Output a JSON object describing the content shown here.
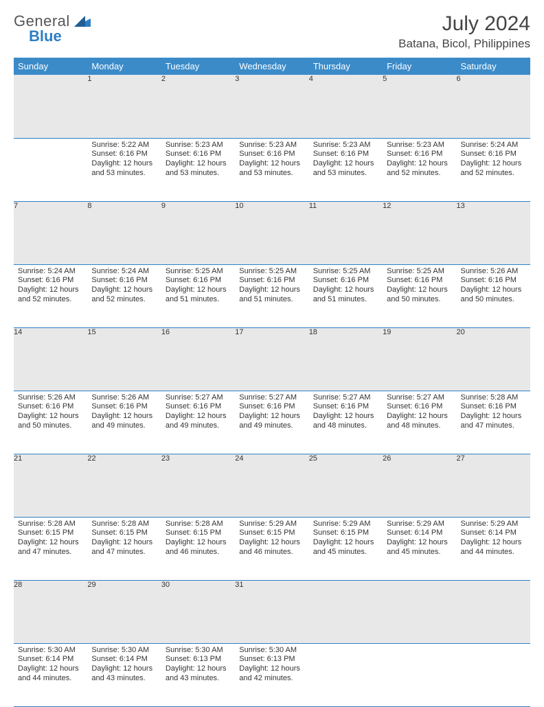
{
  "brand": {
    "name_part1": "General",
    "name_part2": "Blue"
  },
  "title": "July 2024",
  "location": "Batana, Bicol, Philippines",
  "colors": {
    "accent": "#3b8bc9",
    "rule": "#2d7ec4",
    "daybg": "#e8e8e8",
    "text": "#333333"
  },
  "weekdays": [
    "Sunday",
    "Monday",
    "Tuesday",
    "Wednesday",
    "Thursday",
    "Friday",
    "Saturday"
  ],
  "weeks": [
    {
      "nums": [
        "",
        "1",
        "2",
        "3",
        "4",
        "5",
        "6"
      ],
      "cells": [
        null,
        {
          "sunrise": "Sunrise: 5:22 AM",
          "sunset": "Sunset: 6:16 PM",
          "daylight": "Daylight: 12 hours and 53 minutes."
        },
        {
          "sunrise": "Sunrise: 5:23 AM",
          "sunset": "Sunset: 6:16 PM",
          "daylight": "Daylight: 12 hours and 53 minutes."
        },
        {
          "sunrise": "Sunrise: 5:23 AM",
          "sunset": "Sunset: 6:16 PM",
          "daylight": "Daylight: 12 hours and 53 minutes."
        },
        {
          "sunrise": "Sunrise: 5:23 AM",
          "sunset": "Sunset: 6:16 PM",
          "daylight": "Daylight: 12 hours and 53 minutes."
        },
        {
          "sunrise": "Sunrise: 5:23 AM",
          "sunset": "Sunset: 6:16 PM",
          "daylight": "Daylight: 12 hours and 52 minutes."
        },
        {
          "sunrise": "Sunrise: 5:24 AM",
          "sunset": "Sunset: 6:16 PM",
          "daylight": "Daylight: 12 hours and 52 minutes."
        }
      ]
    },
    {
      "nums": [
        "7",
        "8",
        "9",
        "10",
        "11",
        "12",
        "13"
      ],
      "cells": [
        {
          "sunrise": "Sunrise: 5:24 AM",
          "sunset": "Sunset: 6:16 PM",
          "daylight": "Daylight: 12 hours and 52 minutes."
        },
        {
          "sunrise": "Sunrise: 5:24 AM",
          "sunset": "Sunset: 6:16 PM",
          "daylight": "Daylight: 12 hours and 52 minutes."
        },
        {
          "sunrise": "Sunrise: 5:25 AM",
          "sunset": "Sunset: 6:16 PM",
          "daylight": "Daylight: 12 hours and 51 minutes."
        },
        {
          "sunrise": "Sunrise: 5:25 AM",
          "sunset": "Sunset: 6:16 PM",
          "daylight": "Daylight: 12 hours and 51 minutes."
        },
        {
          "sunrise": "Sunrise: 5:25 AM",
          "sunset": "Sunset: 6:16 PM",
          "daylight": "Daylight: 12 hours and 51 minutes."
        },
        {
          "sunrise": "Sunrise: 5:25 AM",
          "sunset": "Sunset: 6:16 PM",
          "daylight": "Daylight: 12 hours and 50 minutes."
        },
        {
          "sunrise": "Sunrise: 5:26 AM",
          "sunset": "Sunset: 6:16 PM",
          "daylight": "Daylight: 12 hours and 50 minutes."
        }
      ]
    },
    {
      "nums": [
        "14",
        "15",
        "16",
        "17",
        "18",
        "19",
        "20"
      ],
      "cells": [
        {
          "sunrise": "Sunrise: 5:26 AM",
          "sunset": "Sunset: 6:16 PM",
          "daylight": "Daylight: 12 hours and 50 minutes."
        },
        {
          "sunrise": "Sunrise: 5:26 AM",
          "sunset": "Sunset: 6:16 PM",
          "daylight": "Daylight: 12 hours and 49 minutes."
        },
        {
          "sunrise": "Sunrise: 5:27 AM",
          "sunset": "Sunset: 6:16 PM",
          "daylight": "Daylight: 12 hours and 49 minutes."
        },
        {
          "sunrise": "Sunrise: 5:27 AM",
          "sunset": "Sunset: 6:16 PM",
          "daylight": "Daylight: 12 hours and 49 minutes."
        },
        {
          "sunrise": "Sunrise: 5:27 AM",
          "sunset": "Sunset: 6:16 PM",
          "daylight": "Daylight: 12 hours and 48 minutes."
        },
        {
          "sunrise": "Sunrise: 5:27 AM",
          "sunset": "Sunset: 6:16 PM",
          "daylight": "Daylight: 12 hours and 48 minutes."
        },
        {
          "sunrise": "Sunrise: 5:28 AM",
          "sunset": "Sunset: 6:16 PM",
          "daylight": "Daylight: 12 hours and 47 minutes."
        }
      ]
    },
    {
      "nums": [
        "21",
        "22",
        "23",
        "24",
        "25",
        "26",
        "27"
      ],
      "cells": [
        {
          "sunrise": "Sunrise: 5:28 AM",
          "sunset": "Sunset: 6:15 PM",
          "daylight": "Daylight: 12 hours and 47 minutes."
        },
        {
          "sunrise": "Sunrise: 5:28 AM",
          "sunset": "Sunset: 6:15 PM",
          "daylight": "Daylight: 12 hours and 47 minutes."
        },
        {
          "sunrise": "Sunrise: 5:28 AM",
          "sunset": "Sunset: 6:15 PM",
          "daylight": "Daylight: 12 hours and 46 minutes."
        },
        {
          "sunrise": "Sunrise: 5:29 AM",
          "sunset": "Sunset: 6:15 PM",
          "daylight": "Daylight: 12 hours and 46 minutes."
        },
        {
          "sunrise": "Sunrise: 5:29 AM",
          "sunset": "Sunset: 6:15 PM",
          "daylight": "Daylight: 12 hours and 45 minutes."
        },
        {
          "sunrise": "Sunrise: 5:29 AM",
          "sunset": "Sunset: 6:14 PM",
          "daylight": "Daylight: 12 hours and 45 minutes."
        },
        {
          "sunrise": "Sunrise: 5:29 AM",
          "sunset": "Sunset: 6:14 PM",
          "daylight": "Daylight: 12 hours and 44 minutes."
        }
      ]
    },
    {
      "nums": [
        "28",
        "29",
        "30",
        "31",
        "",
        "",
        ""
      ],
      "cells": [
        {
          "sunrise": "Sunrise: 5:30 AM",
          "sunset": "Sunset: 6:14 PM",
          "daylight": "Daylight: 12 hours and 44 minutes."
        },
        {
          "sunrise": "Sunrise: 5:30 AM",
          "sunset": "Sunset: 6:14 PM",
          "daylight": "Daylight: 12 hours and 43 minutes."
        },
        {
          "sunrise": "Sunrise: 5:30 AM",
          "sunset": "Sunset: 6:13 PM",
          "daylight": "Daylight: 12 hours and 43 minutes."
        },
        {
          "sunrise": "Sunrise: 5:30 AM",
          "sunset": "Sunset: 6:13 PM",
          "daylight": "Daylight: 12 hours and 42 minutes."
        },
        null,
        null,
        null
      ]
    }
  ]
}
